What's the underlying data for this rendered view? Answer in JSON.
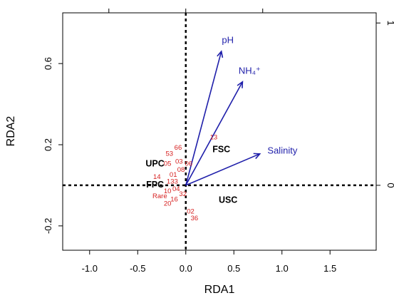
{
  "colors": {
    "vector": "#1f1faa",
    "species": "#d62020",
    "group": "#000000",
    "axis": "#000000",
    "background": "#ffffff"
  },
  "chart_data": {
    "type": "scatter",
    "title": "",
    "xlabel": "RDA1",
    "ylabel": "RDA2",
    "xlim": [
      -1.28,
      1.98
    ],
    "ylim": [
      -0.32,
      0.85
    ],
    "x_ticks": [
      -1.0,
      -0.5,
      0.0,
      0.5,
      1.0,
      1.5
    ],
    "x_tick_labels": [
      "-1.0",
      "-0.5",
      "0.0",
      "0.5",
      "1.0",
      "1.5"
    ],
    "y_ticks": [
      -0.2,
      0.2,
      0.6
    ],
    "y_tick_labels": [
      "-0.2",
      "0.2",
      "0.6"
    ],
    "right_axis_ticks": [
      0.0,
      0.8
    ],
    "right_axis_tick_labels": [
      "0",
      "1"
    ],
    "top_axis_ticks": [
      -0.8,
      0.0,
      0.8
    ],
    "reference_lines": {
      "x": 0.0,
      "y": 0.0,
      "style": "dotted"
    },
    "vectors": [
      {
        "label": "pH",
        "x": 0.37,
        "y": 0.66
      },
      {
        "label": "NH₄⁺",
        "x": 0.59,
        "y": 0.51
      },
      {
        "label": "Salinity",
        "x": 0.77,
        "y": 0.155
      }
    ],
    "species": [
      {
        "label": "13",
        "x": 0.29,
        "y": 0.235
      },
      {
        "label": "66",
        "x": -0.08,
        "y": 0.185
      },
      {
        "label": "53",
        "x": -0.17,
        "y": 0.155
      },
      {
        "label": "03",
        "x": -0.07,
        "y": 0.115
      },
      {
        "label": "06",
        "x": 0.03,
        "y": 0.105
      },
      {
        "label": "05",
        "x": -0.19,
        "y": 0.105
      },
      {
        "label": "08",
        "x": -0.05,
        "y": 0.075
      },
      {
        "label": "01",
        "x": -0.13,
        "y": 0.05
      },
      {
        "label": "14",
        "x": -0.3,
        "y": 0.04
      },
      {
        "label": "133",
        "x": -0.14,
        "y": 0.018
      },
      {
        "label": "04",
        "x": -0.1,
        "y": -0.02
      },
      {
        "label": "10",
        "x": -0.19,
        "y": -0.03
      },
      {
        "label": "32",
        "x": -0.03,
        "y": -0.045
      },
      {
        "label": "Rare",
        "x": -0.27,
        "y": -0.055
      },
      {
        "label": "16",
        "x": -0.12,
        "y": -0.07
      },
      {
        "label": "20",
        "x": -0.19,
        "y": -0.092
      },
      {
        "label": "02",
        "x": 0.05,
        "y": -0.13
      },
      {
        "label": "36",
        "x": 0.09,
        "y": -0.163
      }
    ],
    "groups": [
      {
        "label": "FSC",
        "x": 0.37,
        "y": 0.175
      },
      {
        "label": "UPC",
        "x": -0.32,
        "y": 0.105
      },
      {
        "label": "FPC",
        "x": -0.32,
        "y": 0.0
      },
      {
        "label": "USC",
        "x": 0.44,
        "y": -0.075
      }
    ]
  }
}
